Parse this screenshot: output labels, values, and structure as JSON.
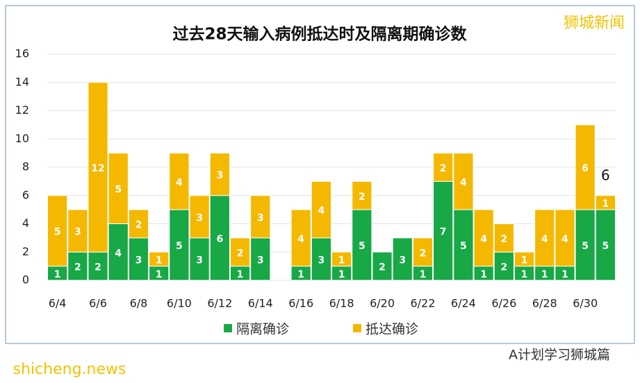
{
  "chart_data": {
    "type": "stacked-bar",
    "title": "过去28天输入病例抵达时及隔离期确诊数",
    "categories": [
      "6/4",
      null,
      "6/6",
      null,
      "6/8",
      null,
      "6/10",
      null,
      "6/12",
      null,
      "6/14",
      null,
      "6/16",
      null,
      "6/18",
      null,
      "6/20",
      null,
      "6/22",
      null,
      "6/24",
      null,
      "6/26",
      null,
      "6/28",
      null,
      "6/30",
      null
    ],
    "series": [
      {
        "name": "隔离确诊",
        "color": "#18a846",
        "values": [
          1,
          2,
          2,
          4,
          3,
          1,
          5,
          3,
          6,
          1,
          3,
          0,
          1,
          3,
          1,
          5,
          2,
          3,
          1,
          7,
          5,
          1,
          2,
          1,
          1,
          1,
          5,
          5
        ]
      },
      {
        "name": "抵达确诊",
        "color": "#f5b800",
        "values": [
          5,
          3,
          12,
          5,
          2,
          1,
          4,
          3,
          3,
          2,
          3,
          0,
          4,
          4,
          1,
          2,
          0,
          0,
          2,
          2,
          4,
          4,
          2,
          1,
          4,
          4,
          6,
          1
        ]
      }
    ],
    "annotation": "6",
    "ylim": [
      0,
      16
    ],
    "yticks": [
      0,
      2,
      4,
      6,
      8,
      10,
      12,
      14,
      16
    ],
    "grid": true,
    "legend": "bottom",
    "watermark": "狮城新闻",
    "footer_right": "A计划学习狮城篇",
    "footer_left": "shicheng.news"
  }
}
